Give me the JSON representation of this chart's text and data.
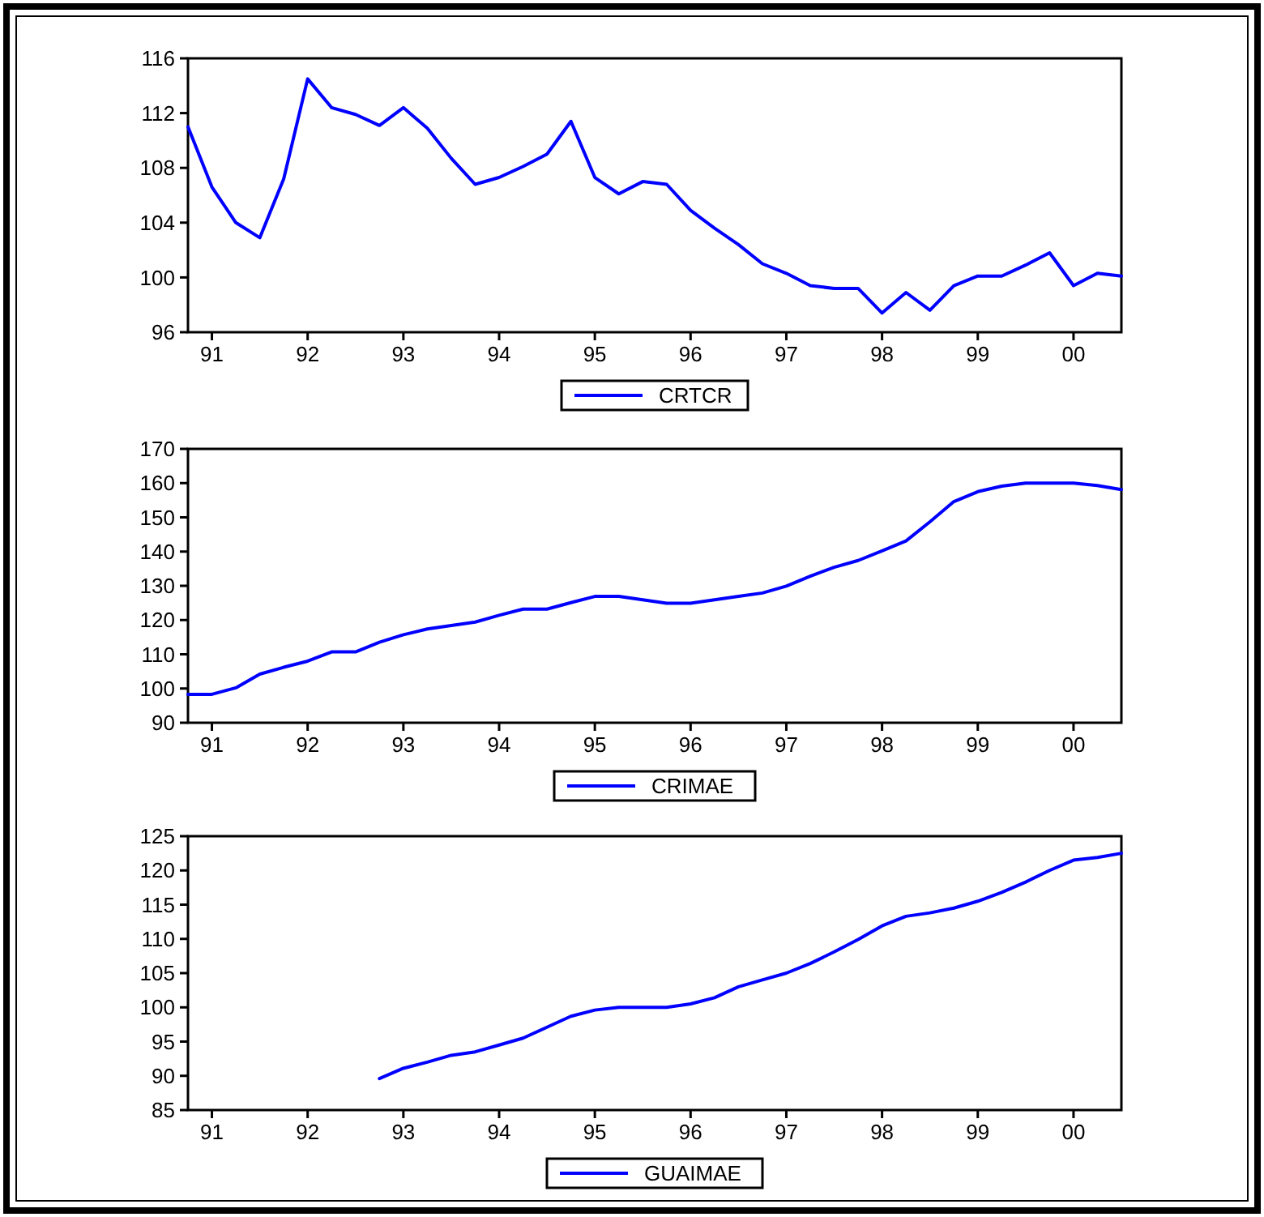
{
  "chart_data": [
    {
      "type": "line",
      "x": [
        1990.75,
        1991,
        1991.25,
        1991.5,
        1991.75,
        1992,
        1992.25,
        1992.5,
        1992.75,
        1993,
        1993.25,
        1993.5,
        1993.75,
        1994,
        1994.25,
        1994.5,
        1994.75,
        1995,
        1995.25,
        1995.5,
        1995.75,
        1996,
        1996.25,
        1996.5,
        1996.75,
        1997,
        1997.25,
        1997.5,
        1997.75,
        1998,
        1998.25,
        1998.5,
        1998.75,
        1999,
        1999.25,
        1999.5,
        1999.75,
        2000,
        2000.25,
        2000.5
      ],
      "series": [
        {
          "name": "CRTCR",
          "color": "#0000ff",
          "values": [
            111.0,
            106.6,
            104.0,
            102.9,
            107.2,
            114.5,
            112.4,
            111.9,
            111.1,
            112.4,
            110.9,
            108.7,
            106.8,
            107.3,
            108.1,
            109.0,
            111.4,
            107.3,
            106.1,
            107.0,
            106.8,
            104.9,
            103.6,
            102.4,
            101.0,
            100.3,
            99.4,
            99.2,
            99.2,
            97.4,
            98.9,
            97.6,
            99.4,
            100.1,
            100.1,
            100.9,
            101.8,
            99.4,
            100.3,
            100.1
          ]
        }
      ],
      "xlim": [
        1990.75,
        2000.5
      ],
      "xticks": [
        {
          "value": 1991,
          "label": "91"
        },
        {
          "value": 1992,
          "label": "92"
        },
        {
          "value": 1993,
          "label": "93"
        },
        {
          "value": 1994,
          "label": "94"
        },
        {
          "value": 1995,
          "label": "95"
        },
        {
          "value": 1996,
          "label": "96"
        },
        {
          "value": 1997,
          "label": "97"
        },
        {
          "value": 1998,
          "label": "98"
        },
        {
          "value": 1999,
          "label": "99"
        },
        {
          "value": 2000,
          "label": "00"
        }
      ],
      "ylim": [
        96,
        116
      ],
      "yticks": [
        96,
        100,
        104,
        108,
        112,
        116
      ],
      "legend": "bottom"
    },
    {
      "type": "line",
      "x": [
        1990.75,
        1991,
        1991.25,
        1991.5,
        1991.75,
        1992,
        1992.25,
        1992.5,
        1992.75,
        1993,
        1993.25,
        1993.5,
        1993.75,
        1994,
        1994.25,
        1994.5,
        1994.75,
        1995,
        1995.25,
        1995.5,
        1995.75,
        1996,
        1996.25,
        1996.5,
        1996.75,
        1997,
        1997.25,
        1997.5,
        1997.75,
        1998,
        1998.25,
        1998.5,
        1998.75,
        1999,
        1999.25,
        1999.5,
        1999.75,
        2000,
        2000.25,
        2000.5
      ],
      "series": [
        {
          "name": "CRIMAE",
          "color": "#0000ff",
          "values": [
            98.3,
            98.3,
            100.2,
            104.2,
            106.2,
            108.0,
            110.7,
            110.7,
            113.5,
            115.7,
            117.4,
            118.4,
            119.4,
            121.4,
            123.2,
            123.2,
            125.1,
            126.9,
            126.9,
            125.9,
            124.9,
            124.9,
            125.9,
            126.9,
            127.9,
            129.9,
            132.8,
            135.4,
            137.4,
            140.2,
            143.1,
            148.7,
            154.6,
            157.5,
            159.1,
            160.0,
            160.0,
            160.0,
            159.3,
            158.1
          ]
        }
      ],
      "xlim": [
        1990.75,
        2000.5
      ],
      "xticks": [
        {
          "value": 1991,
          "label": "91"
        },
        {
          "value": 1992,
          "label": "92"
        },
        {
          "value": 1993,
          "label": "93"
        },
        {
          "value": 1994,
          "label": "94"
        },
        {
          "value": 1995,
          "label": "95"
        },
        {
          "value": 1996,
          "label": "96"
        },
        {
          "value": 1997,
          "label": "97"
        },
        {
          "value": 1998,
          "label": "98"
        },
        {
          "value": 1999,
          "label": "99"
        },
        {
          "value": 2000,
          "label": "00"
        }
      ],
      "ylim": [
        90,
        170
      ],
      "yticks": [
        90,
        100,
        110,
        120,
        130,
        140,
        150,
        160,
        170
      ],
      "legend": "bottom"
    },
    {
      "type": "line",
      "series": [
        {
          "name": "GUAIMAE",
          "color": "#0000ff",
          "x": [
            1992.75,
            1993,
            1993.25,
            1993.5,
            1993.75,
            1994,
            1994.25,
            1994.5,
            1994.75,
            1995,
            1995.25,
            1995.5,
            1995.75,
            1996,
            1996.25,
            1996.5,
            1996.75,
            1997,
            1997.25,
            1997.5,
            1997.75,
            1998,
            1998.25,
            1998.5,
            1998.75,
            1999,
            1999.25,
            1999.5,
            1999.75,
            2000,
            2000.25,
            2000.5
          ],
          "values": [
            89.6,
            91.1,
            92.0,
            93.0,
            93.5,
            94.5,
            95.5,
            97.1,
            98.7,
            99.6,
            100.0,
            100.0,
            100.0,
            100.5,
            101.4,
            103.0,
            104.0,
            105.0,
            106.4,
            108.1,
            109.9,
            111.9,
            113.3,
            113.8,
            114.5,
            115.5,
            116.8,
            118.3,
            120.0,
            121.5,
            121.9,
            122.5
          ]
        }
      ],
      "xlim": [
        1990.75,
        2000.5
      ],
      "xticks": [
        {
          "value": 1991,
          "label": "91"
        },
        {
          "value": 1992,
          "label": "92"
        },
        {
          "value": 1993,
          "label": "93"
        },
        {
          "value": 1994,
          "label": "94"
        },
        {
          "value": 1995,
          "label": "95"
        },
        {
          "value": 1996,
          "label": "96"
        },
        {
          "value": 1997,
          "label": "97"
        },
        {
          "value": 1998,
          "label": "98"
        },
        {
          "value": 1999,
          "label": "99"
        },
        {
          "value": 2000,
          "label": "00"
        }
      ],
      "ylim": [
        85,
        125
      ],
      "yticks": [
        85,
        90,
        95,
        100,
        105,
        110,
        115,
        120,
        125
      ],
      "legend": "bottom"
    }
  ]
}
